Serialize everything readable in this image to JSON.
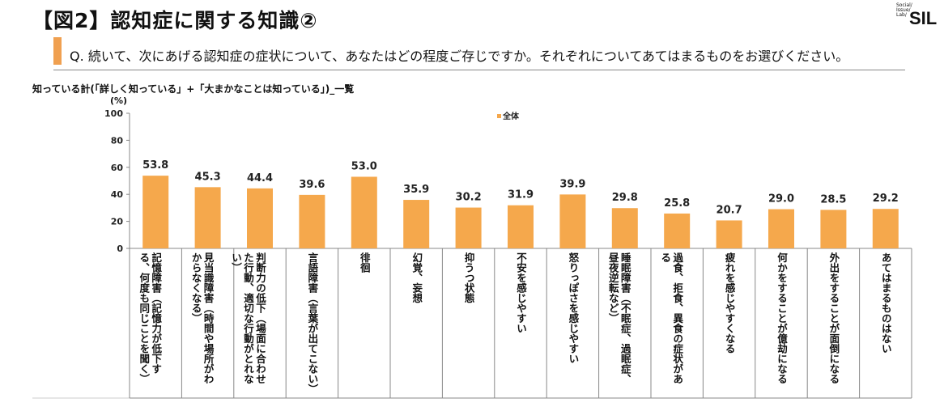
{
  "header": {
    "title": "【図2】認知症に関する知識②",
    "logo": "Social Issue Lab SIL",
    "question": "Q. 続いて、次にあげる認知症の症状について、あなたはどの程度ご存じですか。それぞれについてあてはまるものをお選びください。"
  },
  "chart_data": {
    "type": "bar",
    "title": "知っている計(「詳しく知っている」+「大まかなことは知っている」)_一覧",
    "ylabel": "(%)",
    "ylim": [
      0,
      100
    ],
    "yticks": [
      "0",
      "20",
      "40",
      "60",
      "80",
      "100"
    ],
    "legend": {
      "position": "top",
      "entries": [
        "全体"
      ]
    },
    "grid": false,
    "color": "#f5a84c",
    "categories": [
      "記憶障害（記憶力が低下する、何度も同じことを聞く）",
      "見当識障害（時間や場所がわからなくなる）",
      "判断力の低下（場面に合わせた行動、適切な行動がとれない）",
      "言語障害（言葉が出てこない）",
      "徘徊",
      "幻覚、妄想",
      "抑うつ状態",
      "不安を感じやすい",
      "怒りっぽさを感じやすい",
      "睡眠障害（不眠症、過眠症、昼夜逆転など）",
      "過食、拒食、異食の症状がある",
      "疲れを感じやすくなる",
      "何かをすることが億劫になる",
      "外出をすることが面倒になる",
      "あてはまるものはない"
    ],
    "series": [
      {
        "name": "全体",
        "values": [
          53.8,
          45.3,
          44.4,
          39.6,
          53.0,
          35.9,
          30.2,
          31.9,
          39.9,
          29.8,
          25.8,
          20.7,
          29.0,
          28.5,
          29.2
        ],
        "labels": [
          "53.8",
          "45.3",
          "44.4",
          "39.6",
          "53.0",
          "35.9",
          "30.2",
          "31.9",
          "39.9",
          "29.8",
          "25.8",
          "20.7",
          "29.0",
          "28.5",
          "29.2"
        ]
      }
    ]
  }
}
